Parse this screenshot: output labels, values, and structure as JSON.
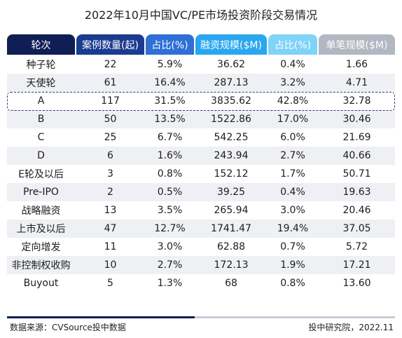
{
  "chart_data": {
    "type": "table",
    "title": "2022年10月中国VC/PE市场投资阶段交易情况",
    "columns": [
      "轮次",
      "案例数量(起)",
      "占比(%)",
      "融资规模($M)",
      "占比(%)",
      "单笔规模($M)"
    ],
    "header_colors": [
      "#0f1e55",
      "#1b3b8f",
      "#2f6fd6",
      "#2aa6f0",
      "#7fd3f7",
      "#b3b7c1"
    ],
    "rows": [
      [
        "种子轮",
        "22",
        "5.9%",
        "36.62",
        "0.4%",
        "1.66"
      ],
      [
        "天使轮",
        "61",
        "16.4%",
        "287.13",
        "3.2%",
        "4.71"
      ],
      [
        "A",
        "117",
        "31.5%",
        "3835.62",
        "42.8%",
        "32.78"
      ],
      [
        "B",
        "50",
        "13.5%",
        "1522.86",
        "17.0%",
        "30.46"
      ],
      [
        "C",
        "25",
        "6.7%",
        "542.25",
        "6.0%",
        "21.69"
      ],
      [
        "D",
        "6",
        "1.6%",
        "243.94",
        "2.7%",
        "40.66"
      ],
      [
        "E轮及以后",
        "3",
        "0.8%",
        "152.12",
        "1.7%",
        "50.71"
      ],
      [
        "Pre-IPO",
        "2",
        "0.5%",
        "39.25",
        "0.4%",
        "19.63"
      ],
      [
        "战略融资",
        "13",
        "3.5%",
        "265.94",
        "3.0%",
        "20.46"
      ],
      [
        "上市及以后",
        "47",
        "12.7%",
        "1741.47",
        "19.4%",
        "37.05"
      ],
      [
        "定向增发",
        "11",
        "3.0%",
        "62.88",
        "0.7%",
        "5.72"
      ],
      [
        "非控制权收购",
        "10",
        "2.7%",
        "172.13",
        "1.9%",
        "17.21"
      ],
      [
        "Buyout",
        "5",
        "1.3%",
        "68",
        "0.8%",
        "13.60"
      ]
    ],
    "highlighted_row": "A",
    "source": "数据来源：CVSource投中数据",
    "credit": "投中研究院，2022.11"
  }
}
